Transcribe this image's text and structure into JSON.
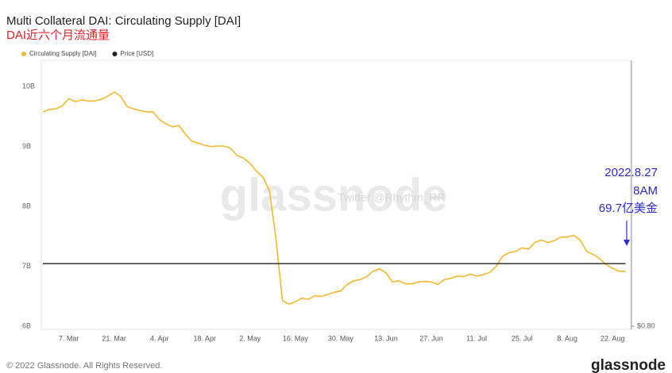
{
  "chart_data": {
    "type": "line",
    "title": "Multi Collateral DAI: Circulating Supply [DAI]",
    "subtitle": "DAI近六个月流通量",
    "categories": [
      null,
      null,
      null,
      null,
      "7. Mar",
      null,
      null,
      null,
      null,
      null,
      null,
      "21. Mar",
      null,
      null,
      null,
      null,
      null,
      null,
      "4. Apr",
      null,
      null,
      null,
      null,
      null,
      null,
      "18. Apr",
      null,
      null,
      null,
      null,
      null,
      null,
      "2. May",
      null,
      null,
      null,
      null,
      null,
      null,
      "16. May",
      null,
      null,
      null,
      null,
      null,
      null,
      "30. May",
      null,
      null,
      null,
      null,
      null,
      null,
      "13. Jun",
      null,
      null,
      null,
      null,
      null,
      null,
      "27. Jun",
      null,
      null,
      null,
      null,
      null,
      null,
      "11. Jul",
      null,
      null,
      null,
      null,
      null,
      null,
      "25. Jul",
      null,
      null,
      null,
      null,
      null,
      null,
      "8. Aug",
      null,
      null,
      null,
      null,
      null,
      null,
      "22. Aug",
      null,
      null
    ],
    "series": [
      {
        "name": "Circulating Supply [DAI]",
        "color": "#f5b82e",
        "values": [
          9.58,
          9.62,
          9.63,
          9.68,
          9.8,
          9.75,
          9.78,
          9.76,
          9.76,
          9.79,
          9.84,
          9.91,
          9.84,
          9.67,
          9.63,
          9.6,
          9.58,
          9.58,
          9.45,
          9.38,
          9.33,
          9.35,
          9.21,
          9.09,
          9.06,
          9.02,
          9.0,
          9.01,
          9.01,
          8.97,
          8.85,
          8.81,
          8.72,
          8.59,
          8.49,
          8.26,
          7.46,
          6.43,
          6.37,
          6.41,
          6.47,
          6.45,
          6.51,
          6.5,
          6.53,
          6.57,
          6.59,
          6.7,
          6.76,
          6.78,
          6.83,
          6.92,
          6.96,
          6.89,
          6.74,
          6.76,
          6.71,
          6.71,
          6.74,
          6.75,
          6.74,
          6.7,
          6.78,
          6.8,
          6.84,
          6.83,
          6.87,
          6.84,
          6.86,
          6.9,
          7.0,
          7.17,
          7.23,
          7.25,
          7.31,
          7.29,
          7.4,
          7.44,
          7.4,
          7.43,
          7.49,
          7.49,
          7.52,
          7.44,
          7.25,
          7.2,
          7.13,
          7.03,
          6.97,
          6.92,
          6.92
        ]
      },
      {
        "name": "Price [USD]",
        "color": "#222222",
        "axis": "y2",
        "values": [
          1,
          1,
          1,
          1,
          1,
          1,
          1,
          1,
          1,
          1,
          1,
          1,
          1,
          1,
          1,
          1,
          1,
          1,
          1,
          1,
          1,
          1,
          1,
          1,
          1,
          1,
          1,
          1,
          1,
          1,
          1,
          1,
          1,
          1,
          1,
          1,
          1,
          1,
          1,
          1,
          1,
          1,
          1,
          1,
          1,
          1,
          1,
          1,
          1,
          1,
          1,
          1,
          1,
          1,
          1,
          1,
          1,
          1,
          1,
          1,
          1,
          1,
          1,
          1,
          1,
          1,
          1,
          1,
          1,
          1,
          1,
          1,
          1,
          1,
          1,
          1,
          1,
          1,
          1,
          1,
          1,
          1,
          1,
          1,
          1,
          1,
          1,
          1,
          1,
          1,
          1
        ]
      }
    ],
    "ylim": [
      5.95,
      10.44
    ],
    "yticks": [
      {
        "value": 6,
        "label": "6B"
      },
      {
        "value": 7,
        "label": "7B"
      },
      {
        "value": 8,
        "label": "8B"
      },
      {
        "value": 9,
        "label": "9B"
      },
      {
        "value": 10,
        "label": "10B"
      }
    ],
    "y2lim": [
      0.79,
      1.65
    ],
    "y2ticks": [
      {
        "value": 0.8,
        "label": "$0.80"
      }
    ],
    "grid": false,
    "legend": "top-left",
    "annotations": [
      "2022.8.27",
      "8AM",
      "69.7亿美金"
    ],
    "watermark": "glassnode",
    "watermark_credit": "Twitter @Rhythm_RR",
    "footer": "© 2022 Glassnode. All Rights Reserved.",
    "brand": "glassnode"
  }
}
